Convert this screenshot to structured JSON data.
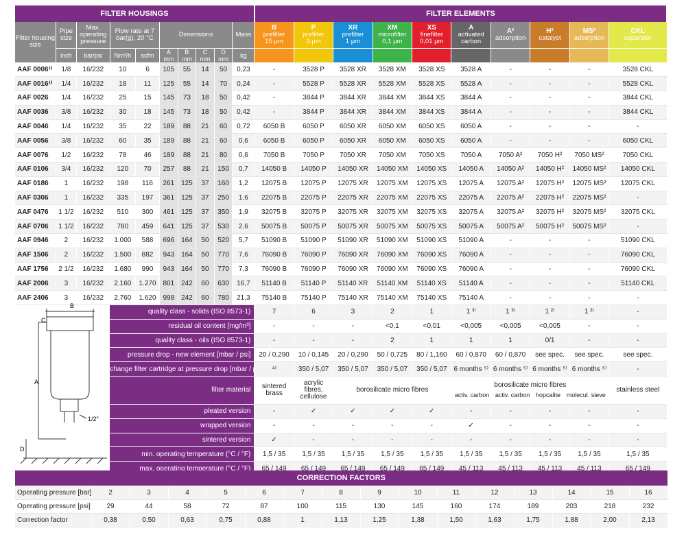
{
  "headers": {
    "filter_housings": "FILTER HOUSINGS",
    "filter_elements": "FILTER ELEMENTS",
    "filter_housing_size": "Filter housing size",
    "pipe_size": "Pipe size",
    "max_pressure": "Max. operating pressure",
    "flow_rate": "Flow rate at 7 bar(g), 20 °C",
    "dimensions": "Dimensions",
    "mass": "Mass",
    "dims": [
      "A",
      "B",
      "C",
      "D"
    ],
    "units": [
      "inch",
      "bar/psi",
      "Nm³/h",
      "scfm",
      "mm",
      "mm",
      "mm",
      "mm",
      "kg"
    ]
  },
  "elements": [
    {
      "code": "B",
      "name": "prefilter",
      "grade": "15 µm"
    },
    {
      "code": "P",
      "name": "prefilter",
      "grade": "3 µm"
    },
    {
      "code": "XR",
      "name": "prefilter",
      "grade": "1 µm"
    },
    {
      "code": "XM",
      "name": "microfilter",
      "grade": "0,1 µm"
    },
    {
      "code": "XS",
      "name": "finefilter",
      "grade": "0,01 µm"
    },
    {
      "code": "A",
      "name": "activated",
      "grade": "carbon"
    },
    {
      "code": "A²",
      "name": "adsorption",
      "grade": ""
    },
    {
      "code": "H²",
      "name": "catalyst",
      "grade": ""
    },
    {
      "code": "MS²",
      "name": "adsorption",
      "grade": ""
    },
    {
      "code": "CKL",
      "name": "separator",
      "grade": ""
    }
  ],
  "rows": [
    [
      "AAF 0006¹⁾",
      "1/8",
      "16/232",
      "10",
      "6",
      "105",
      "55",
      "14",
      "50",
      "0,23",
      "-",
      "3528 P",
      "3528 XR",
      "3528 XM",
      "3528 XS",
      "3528 A",
      "-",
      "-",
      "-",
      "3528 CKL"
    ],
    [
      "AAF 0016¹⁾",
      "1/4",
      "16/232",
      "18",
      "11",
      "125",
      "55",
      "14",
      "70",
      "0,24",
      "-",
      "5528 P",
      "5528 XR",
      "5528 XM",
      "5528 XS",
      "5528 A",
      "-",
      "-",
      "-",
      "5528 CKL"
    ],
    [
      "AAF 0026",
      "1/4",
      "16/232",
      "25",
      "15",
      "145",
      "73",
      "18",
      "50",
      "0,42",
      "-",
      "3844 P",
      "3844 XR",
      "3844 XM",
      "3844 XS",
      "3844 A",
      "-",
      "-",
      "-",
      "3844 CKL"
    ],
    [
      "AAF 0036",
      "3/8",
      "16/232",
      "30",
      "18",
      "145",
      "73",
      "18",
      "50",
      "0,42",
      "-",
      "3844 P",
      "3844 XR",
      "3844 XM",
      "3844 XS",
      "3844 A",
      "-",
      "-",
      "-",
      "3844 CKL"
    ],
    [
      "AAF 0046",
      "1/4",
      "16/232",
      "35",
      "22",
      "189",
      "88",
      "21",
      "60",
      "0,72",
      "6050 B",
      "6050 P",
      "6050 XR",
      "6050 XM",
      "6050 XS",
      "6050 A",
      "-",
      "-",
      "-",
      "-"
    ],
    [
      "AAF 0056",
      "3/8",
      "16/232",
      "60",
      "35",
      "189",
      "88",
      "21",
      "60",
      "0,6",
      "6050 B",
      "6050 P",
      "6050 XR",
      "6050 XM",
      "6050 XS",
      "6050 A",
      "-",
      "-",
      "-",
      "6050 CKL"
    ],
    [
      "AAF 0076",
      "1/2",
      "16/232",
      "78",
      "46",
      "189",
      "88",
      "21",
      "80",
      "0,6",
      "7050 B",
      "7050 P",
      "7050 XR",
      "7050 XM",
      "7050 XS",
      "7050 A",
      "7050 A²",
      "7050 H²",
      "7050 MS²",
      "7050 CKL"
    ],
    [
      "AAF 0106",
      "3/4",
      "16/232",
      "120",
      "70",
      "257",
      "88",
      "21",
      "150",
      "0,7",
      "14050 B",
      "14050 P",
      "14050 XR",
      "14050 XM",
      "14050 XS",
      "14050 A",
      "14050 A²",
      "14050 H²",
      "14050 MS²",
      "14050 CKL"
    ],
    [
      "AAF 0186",
      "1",
      "16/232",
      "198",
      "116",
      "261",
      "125",
      "37",
      "160",
      "1,2",
      "12075 B",
      "12075 P",
      "12075 XR",
      "12075 XM",
      "12075 XS",
      "12075 A",
      "12075 A²",
      "12075 H²",
      "12075 MS²",
      "12075 CKL"
    ],
    [
      "AAF 0306",
      "1",
      "16/232",
      "335",
      "197",
      "361",
      "125",
      "37",
      "250",
      "1,6",
      "22075 B",
      "22075 P",
      "22075 XR",
      "22075 XM",
      "22075 XS",
      "22075 A",
      "22075 A²",
      "22075 H²",
      "22075 MS²",
      "-"
    ],
    [
      "AAF 0476",
      "1 1/2",
      "16/232",
      "510",
      "300",
      "461",
      "125",
      "37",
      "350",
      "1,9",
      "32075 B",
      "32075 P",
      "32075 XR",
      "32075 XM",
      "32075 XS",
      "32075 A",
      "32075 A²",
      "32075 H²",
      "32075 MS²",
      "32075 CKL"
    ],
    [
      "AAF 0706",
      "1 1/2",
      "16/232",
      "780",
      "459",
      "641",
      "125",
      "37",
      "530",
      "2,6",
      "50075 B",
      "50075 P",
      "50075 XR",
      "50075 XM",
      "50075 XS",
      "50075 A",
      "50075 A²",
      "50075 H²",
      "50075 MS²",
      "-"
    ],
    [
      "AAF 0946",
      "2",
      "16/232",
      "1.000",
      "588",
      "696",
      "164",
      "50",
      "520",
      "5,7",
      "51090 B",
      "51090 P",
      "51090 XR",
      "51090 XM",
      "51090 XS",
      "51090 A",
      "-",
      "-",
      "-",
      "51090 CKL"
    ],
    [
      "AAF 1506",
      "2",
      "16/232",
      "1.500",
      "882",
      "943",
      "164",
      "50",
      "770",
      "7,6",
      "76090 B",
      "76090 P",
      "76090 XR",
      "76090 XM",
      "76090 XS",
      "76090 A",
      "-",
      "-",
      "-",
      "76090 CKL"
    ],
    [
      "AAF 1756",
      "2 1/2",
      "16/232",
      "1.680",
      "990",
      "943",
      "164",
      "50",
      "770",
      "7,3",
      "76090 B",
      "76090 P",
      "76090 XR",
      "76090 XM",
      "76090 XS",
      "76090 A",
      "-",
      "-",
      "-",
      "76090 CKL"
    ],
    [
      "AAF 2006",
      "3",
      "16/232",
      "2.160",
      "1.270",
      "801",
      "242",
      "60",
      "630",
      "16,7",
      "51140 B",
      "51140 P",
      "51140 XR",
      "51140 XM",
      "51140 XS",
      "51140 A",
      "-",
      "-",
      "-",
      "51140 CKL"
    ],
    [
      "AAF 2406",
      "3",
      "16/232",
      "2.760",
      "1.620",
      "998",
      "242",
      "60",
      "780",
      "21,3",
      "75140 B",
      "75140 P",
      "75140 XR",
      "75140 XM",
      "75140 XS",
      "75140 A",
      "-",
      "-",
      "-",
      "-"
    ]
  ],
  "properties": [
    {
      "label": "quality class - solids (ISO 8573-1)",
      "values": [
        "7",
        "6",
        "3",
        "2",
        "1",
        "1 ³⁾",
        "1 ³⁾",
        "1 ²⁾",
        "1 ²⁾",
        "-"
      ]
    },
    {
      "label": "residual oil content [mg/m³]",
      "values": [
        "-",
        "-",
        "-",
        "<0,1",
        "<0,01",
        "<0,005",
        "<0,005",
        "<0,005",
        "-",
        "-"
      ]
    },
    {
      "label": "quality class - oils (ISO 8573-1)",
      "values": [
        "-",
        "-",
        "-",
        "2",
        "1",
        "1",
        "1",
        "0/1",
        "-",
        "-"
      ]
    },
    {
      "label": "pressure drop - new element [mbar / psi]",
      "values": [
        "20 / 0,290",
        "10 / 0,145",
        "20 / 0,290",
        "50 / 0,725",
        "80 / 1,160",
        "60 / 0,870",
        "60 / 0,870",
        "see spec.",
        "see spec.",
        "see spec."
      ]
    },
    {
      "label": "change filter cartridge at pressure drop [mbar / psi]",
      "values": [
        "⁴⁾",
        "350 / 5,07",
        "350 / 5,07",
        "350 / 5,07",
        "350 / 5,07",
        "6 months ⁵⁾",
        "6 months ⁵⁾",
        "6 months ⁵⁾",
        "6 months ⁵⁾",
        "-"
      ]
    }
  ],
  "material": {
    "label": "filter material",
    "sintered_brass": "sintered brass",
    "acrylic": "acrylic fibres, cellulose",
    "borosilicate": "borosilicate micro fibres",
    "boro_micro_fibres": "borosilicate micro fibres",
    "activ_carbon_1": "activ. carbon",
    "activ_carbon_2": "activ. carbon",
    "hopcalite": "hopcalite",
    "molecul_sieve": "molecul. sieve",
    "stainless_steel": "stainless steel"
  },
  "versions": [
    {
      "label": "pleated version",
      "values": [
        "-",
        "✓",
        "✓",
        "✓",
        "✓",
        "-",
        "-",
        "-",
        "-",
        "-"
      ]
    },
    {
      "label": "wrapped version",
      "values": [
        "-",
        "-",
        "-",
        "-",
        "-",
        "✓",
        "-",
        "-",
        "-",
        "-"
      ]
    },
    {
      "label": "sintered version",
      "values": [
        "✓",
        "-",
        "-",
        "-",
        "-",
        "-",
        "-",
        "-",
        "-",
        "-"
      ]
    },
    {
      "label": "min. operating temperature (°C / °F)",
      "values": [
        "1,5 / 35",
        "1,5 / 35",
        "1,5 / 35",
        "1,5 / 35",
        "1,5 / 35",
        "1,5 / 35",
        "1,5 / 35",
        "1,5 / 35",
        "1,5 / 35",
        "1,5 / 35"
      ]
    },
    {
      "label": "max. operating temperature (°C / °F)",
      "values": [
        "65 / 149",
        "65 / 149",
        "65 / 149",
        "65 / 149",
        "65 / 149",
        "45 / 113",
        "45 / 113",
        "45 / 113",
        "45 / 113",
        "65 / 149"
      ]
    }
  ],
  "drawing": {
    "a": "A",
    "b": "B",
    "c": "C",
    "d": "D",
    "port": "1/2\""
  },
  "correction": {
    "title": "CORRECTION FACTORS",
    "bar_label": "Operating pressure [bar]",
    "psi_label": "Operating pressure [psi]",
    "factor_label": "Correction factor",
    "bar": [
      "2",
      "3",
      "4",
      "5",
      "6",
      "7",
      "8",
      "9",
      "10",
      "11",
      "12",
      "13",
      "14",
      "15",
      "16"
    ],
    "psi": [
      "29",
      "44",
      "58",
      "72",
      "87",
      "100",
      "115",
      "130",
      "145",
      "160",
      "174",
      "189",
      "203",
      "218",
      "232"
    ],
    "factor": [
      "0,38",
      "0,50",
      "0,63",
      "0,75",
      "0,88",
      "1",
      "1,13",
      "1,25",
      "1,38",
      "1,50",
      "1,63",
      "1,75",
      "1,88",
      "2,00",
      "2,13"
    ]
  }
}
